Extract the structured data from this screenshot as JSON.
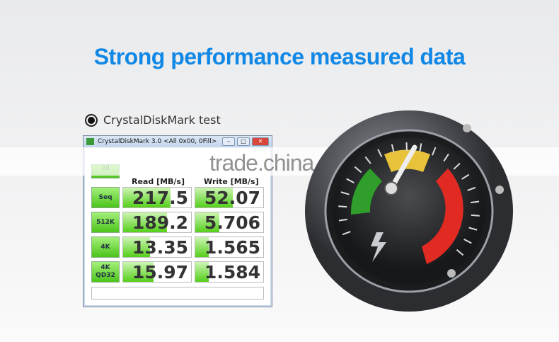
{
  "headline": "Strong performance measured data",
  "bullet_label": "CrystalDiskMark test",
  "window": {
    "title": "CrystalDiskMark 3.0 <All 0x00, 0Fill>",
    "all_label": "All",
    "read_header": "Read [MB/s]",
    "write_header": "Write [MB/s]",
    "rows": [
      {
        "label": "Seq",
        "read": "217.5",
        "write": "52.07",
        "read_fill": 0.7,
        "write_fill": 0.55
      },
      {
        "label": "512K",
        "read": "189.2",
        "write": "5.706",
        "read_fill": 0.65,
        "write_fill": 0.35
      },
      {
        "label": "4K",
        "read": "13.35",
        "write": "1.565",
        "read_fill": 0.4,
        "write_fill": 0.2
      },
      {
        "label": "4K QD32",
        "read": "15.97",
        "write": "1.584",
        "read_fill": 0.45,
        "write_fill": 0.2
      }
    ]
  },
  "watermark": "trade.china.cn",
  "colors": {
    "headline": "#1188e6",
    "cell_green": "#55cf1a",
    "gauge_red": "#e02a22",
    "gauge_green": "#2f9e2a"
  }
}
